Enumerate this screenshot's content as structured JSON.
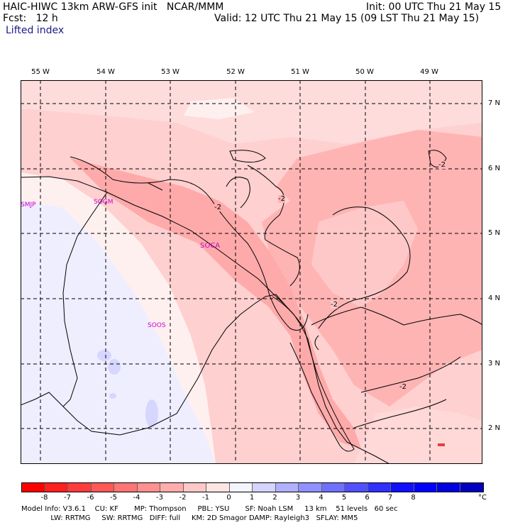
{
  "header": {
    "line1_left": "HAIC-HIWC 13km ARW-GFS init   NCAR/MMM",
    "line2_left": "Fcst:   12 h",
    "line3_left": "Lifted index",
    "line1_right": "Init: 00 UTC Thu 21 May 15",
    "line2_right": "Valid: 12 UTC Thu 21 May 15 (09 LST Thu 21 May 15)"
  },
  "axes": {
    "lon_labels": [
      "55 W",
      "54 W",
      "53 W",
      "52 W",
      "51 W",
      "50 W",
      "49 W"
    ],
    "lat_labels": [
      "7 N",
      "6 N",
      "5 N",
      "4 N",
      "3 N",
      "2 N"
    ]
  },
  "stations": [
    "SMJP",
    "SOGM",
    "SOCA",
    "SOOS"
  ],
  "contour_labels": [
    "-2",
    "-2",
    "-2",
    "-2",
    "-2"
  ],
  "colorbar": {
    "labels": [
      "-8",
      "-7",
      "-6",
      "-5",
      "-4",
      "-3",
      "-2",
      "-1",
      "0",
      "1",
      "2",
      "3",
      "4",
      "5",
      "6",
      "7",
      "8"
    ],
    "unit": "°C",
    "colors": [
      "#ff0000",
      "#ff2020",
      "#ff3c3c",
      "#ff5858",
      "#ff7474",
      "#ff9090",
      "#ffacac",
      "#ffc8c8",
      "#ffe4e4",
      "#f4f4ff",
      "#d4d4ff",
      "#b0b0ff",
      "#9090ff",
      "#7070ff",
      "#5050ff",
      "#3030ff",
      "#1010ff",
      "#0000ff",
      "#0000e0",
      "#0000c0"
    ]
  },
  "footer": {
    "line1": "Model Info: V3.6.1    CU: KF       MP: Thompson     PBL: YSU       SF: Noah LSM     13 km    51 levels   60 sec",
    "line2": "             LW: RRTMG     SW: RRTMG   DIFF: full     KM: 2D Smagor DAMP: Rayleigh3   SFLAY: MM5"
  }
}
